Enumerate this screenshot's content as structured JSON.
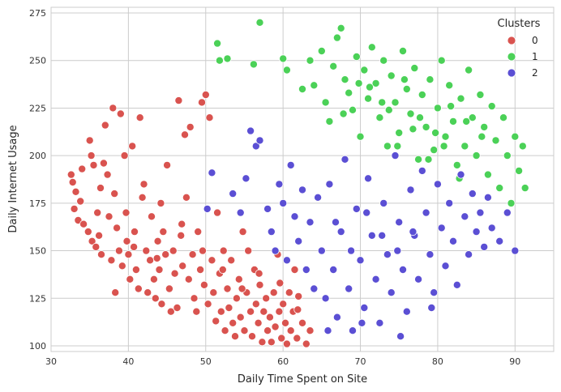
{
  "chart_data": {
    "type": "scatter",
    "title": "",
    "xlabel": "Daily Time Spent on Site",
    "ylabel": "Daily Internet Usage",
    "xlim": [
      30,
      95
    ],
    "ylim": [
      97,
      278
    ],
    "xticks": [
      30,
      40,
      50,
      60,
      70,
      80,
      90
    ],
    "yticks": [
      100,
      125,
      150,
      175,
      200,
      225,
      250,
      275
    ],
    "grid": true,
    "legend": {
      "title": "Clusters",
      "position": "top-right"
    },
    "series": [
      {
        "name": "0",
        "color": "#d9534f",
        "points": [
          [
            32.6,
            190
          ],
          [
            32.8,
            186
          ],
          [
            33.2,
            181
          ],
          [
            33.0,
            172
          ],
          [
            33.5,
            166
          ],
          [
            34.0,
            193
          ],
          [
            34.2,
            164
          ],
          [
            34.8,
            160
          ],
          [
            35.0,
            208
          ],
          [
            35.2,
            200
          ],
          [
            35.5,
            195
          ],
          [
            35.3,
            155
          ],
          [
            35.8,
            152
          ],
          [
            36.0,
            170
          ],
          [
            36.2,
            158
          ],
          [
            36.5,
            148
          ],
          [
            36.8,
            196
          ],
          [
            37.0,
            216
          ],
          [
            37.3,
            190
          ],
          [
            37.5,
            168
          ],
          [
            37.8,
            145
          ],
          [
            38.0,
            225
          ],
          [
            38.2,
            180
          ],
          [
            38.5,
            162
          ],
          [
            38.8,
            150
          ],
          [
            39.0,
            222
          ],
          [
            39.2,
            142
          ],
          [
            39.5,
            200
          ],
          [
            39.8,
            155
          ],
          [
            40.0,
            148
          ],
          [
            40.2,
            135
          ],
          [
            40.5,
            205
          ],
          [
            40.8,
            160
          ],
          [
            41.0,
            140
          ],
          [
            41.3,
            130
          ],
          [
            41.5,
            220
          ],
          [
            41.8,
            178
          ],
          [
            42.0,
            185
          ],
          [
            42.3,
            150
          ],
          [
            42.5,
            128
          ],
          [
            42.8,
            145
          ],
          [
            43.0,
            168
          ],
          [
            43.3,
            135
          ],
          [
            43.5,
            125
          ],
          [
            43.8,
            155
          ],
          [
            44.0,
            140
          ],
          [
            44.3,
            122
          ],
          [
            44.5,
            160
          ],
          [
            44.8,
            148
          ],
          [
            45.0,
            195
          ],
          [
            45.3,
            130
          ],
          [
            45.5,
            118
          ],
          [
            45.8,
            150
          ],
          [
            46.0,
            138
          ],
          [
            46.3,
            120
          ],
          [
            46.5,
            229
          ],
          [
            46.8,
            158
          ],
          [
            47.0,
            142
          ],
          [
            47.3,
            211
          ],
          [
            47.5,
            178
          ],
          [
            47.8,
            135
          ],
          [
            48.0,
            215
          ],
          [
            48.3,
            148
          ],
          [
            48.5,
            125
          ],
          [
            48.8,
            118
          ],
          [
            49.0,
            160
          ],
          [
            49.3,
            140
          ],
          [
            49.5,
            228
          ],
          [
            49.8,
            132
          ],
          [
            50.0,
            232
          ],
          [
            50.3,
            122
          ],
          [
            50.5,
            220
          ],
          [
            50.8,
            145
          ],
          [
            51.0,
            128
          ],
          [
            51.3,
            113
          ],
          [
            51.5,
            170
          ],
          [
            51.8,
            138
          ],
          [
            52.0,
            118
          ],
          [
            52.3,
            150
          ],
          [
            52.5,
            108
          ],
          [
            52.8,
            130
          ],
          [
            53.0,
            120
          ],
          [
            53.3,
            145
          ],
          [
            53.5,
            112
          ],
          [
            53.8,
            105
          ],
          [
            54.0,
            125
          ],
          [
            54.3,
            135
          ],
          [
            54.5,
            115
          ],
          [
            54.8,
            160
          ],
          [
            55.0,
            108
          ],
          [
            55.3,
            128
          ],
          [
            55.5,
            150
          ],
          [
            55.8,
            118
          ],
          [
            56.0,
            105
          ],
          [
            56.3,
            140
          ],
          [
            56.5,
            122
          ],
          [
            56.8,
            112
          ],
          [
            57.0,
            132
          ],
          [
            57.3,
            102
          ],
          [
            57.5,
            118
          ],
          [
            57.8,
            125
          ],
          [
            58.0,
            108
          ],
          [
            58.3,
            115
          ],
          [
            58.5,
            102
          ],
          [
            58.8,
            128
          ],
          [
            59.0,
            110
          ],
          [
            59.3,
            148
          ],
          [
            59.5,
            118
          ],
          [
            59.8,
            104
          ],
          [
            60.0,
            122
          ],
          [
            60.3,
            112
          ],
          [
            60.5,
            101
          ],
          [
            60.8,
            128
          ],
          [
            61.0,
            108
          ],
          [
            61.3,
            118
          ],
          [
            61.5,
            140
          ],
          [
            61.8,
            104
          ],
          [
            62.0,
            126
          ],
          [
            62.5,
            112
          ],
          [
            63.0,
            101
          ],
          [
            63.5,
            108
          ],
          [
            33.8,
            176
          ],
          [
            36.4,
            183
          ],
          [
            39.7,
            170
          ],
          [
            44.2,
            175
          ],
          [
            38.3,
            128
          ],
          [
            40.7,
            152
          ],
          [
            43.7,
            146
          ],
          [
            46.9,
            164
          ],
          [
            49.6,
            150
          ],
          [
            52.2,
            140
          ],
          [
            54.7,
            130
          ],
          [
            56.9,
            138
          ],
          [
            59.6,
            133
          ],
          [
            61.9,
            119
          ]
        ]
      },
      {
        "name": "1",
        "color": "#4bd157",
        "points": [
          [
            51.5,
            259
          ],
          [
            51.8,
            250
          ],
          [
            52.8,
            251
          ],
          [
            56.2,
            248
          ],
          [
            57.0,
            270
          ],
          [
            60.0,
            251
          ],
          [
            60.5,
            245
          ],
          [
            62.5,
            235
          ],
          [
            63.5,
            250
          ],
          [
            64.0,
            237
          ],
          [
            65.0,
            255
          ],
          [
            65.5,
            228
          ],
          [
            66.0,
            218
          ],
          [
            66.5,
            247
          ],
          [
            67.0,
            262
          ],
          [
            67.5,
            267
          ],
          [
            68.0,
            240
          ],
          [
            68.5,
            233
          ],
          [
            69.0,
            224
          ],
          [
            69.5,
            252
          ],
          [
            70.0,
            210
          ],
          [
            70.5,
            245
          ],
          [
            71.0,
            230
          ],
          [
            71.5,
            257
          ],
          [
            72.0,
            238
          ],
          [
            72.5,
            220
          ],
          [
            73.0,
            250
          ],
          [
            73.5,
            205
          ],
          [
            74.0,
            242
          ],
          [
            74.5,
            228
          ],
          [
            75.0,
            212
          ],
          [
            75.5,
            255
          ],
          [
            76.0,
            235
          ],
          [
            76.5,
            222
          ],
          [
            77.0,
            246
          ],
          [
            77.5,
            198
          ],
          [
            78.0,
            232
          ],
          [
            78.5,
            215
          ],
          [
            79.0,
            240
          ],
          [
            79.5,
            203
          ],
          [
            80.0,
            225
          ],
          [
            80.5,
            250
          ],
          [
            81.0,
            210
          ],
          [
            81.5,
            237
          ],
          [
            82.0,
            218
          ],
          [
            82.5,
            195
          ],
          [
            83.0,
            230
          ],
          [
            83.5,
            205
          ],
          [
            84.0,
            245
          ],
          [
            84.5,
            220
          ],
          [
            85.0,
            200
          ],
          [
            85.5,
            232
          ],
          [
            86.0,
            215
          ],
          [
            86.5,
            190
          ],
          [
            87.0,
            226
          ],
          [
            87.5,
            208
          ],
          [
            88.0,
            183
          ],
          [
            88.5,
            220
          ],
          [
            89.0,
            200
          ],
          [
            89.5,
            175
          ],
          [
            90.0,
            210
          ],
          [
            90.5,
            192
          ],
          [
            91.0,
            205
          ],
          [
            91.3,
            183
          ],
          [
            71.2,
            236
          ],
          [
            73.7,
            224
          ],
          [
            75.7,
            240
          ],
          [
            77.7,
            220
          ],
          [
            79.7,
            212
          ],
          [
            81.7,
            226
          ],
          [
            83.7,
            218
          ],
          [
            85.7,
            210
          ],
          [
            78.8,
            198
          ],
          [
            80.8,
            205
          ],
          [
            82.8,
            188
          ],
          [
            74.8,
            205
          ],
          [
            76.8,
            214
          ],
          [
            72.8,
            228
          ],
          [
            69.8,
            238
          ],
          [
            67.8,
            222
          ]
        ]
      },
      {
        "name": "2",
        "color": "#5b4fd4",
        "points": [
          [
            50.2,
            172
          ],
          [
            50.8,
            191
          ],
          [
            53.5,
            180
          ],
          [
            54.5,
            170
          ],
          [
            55.2,
            188
          ],
          [
            55.8,
            213
          ],
          [
            56.5,
            205
          ],
          [
            57.0,
            208
          ],
          [
            58.0,
            172
          ],
          [
            58.5,
            160
          ],
          [
            59.0,
            150
          ],
          [
            59.5,
            185
          ],
          [
            60.0,
            175
          ],
          [
            60.5,
            145
          ],
          [
            61.0,
            195
          ],
          [
            61.5,
            168
          ],
          [
            62.0,
            155
          ],
          [
            62.5,
            182
          ],
          [
            63.0,
            140
          ],
          [
            63.5,
            165
          ],
          [
            64.0,
            130
          ],
          [
            64.5,
            178
          ],
          [
            65.0,
            150
          ],
          [
            65.5,
            125
          ],
          [
            66.0,
            185
          ],
          [
            66.5,
            140
          ],
          [
            67.0,
            115
          ],
          [
            67.5,
            160
          ],
          [
            68.0,
            198
          ],
          [
            68.5,
            130
          ],
          [
            69.0,
            108
          ],
          [
            69.5,
            172
          ],
          [
            70.0,
            145
          ],
          [
            70.5,
            120
          ],
          [
            71.0,
            188
          ],
          [
            71.5,
            158
          ],
          [
            72.0,
            135
          ],
          [
            72.5,
            112
          ],
          [
            73.0,
            175
          ],
          [
            73.5,
            148
          ],
          [
            74.0,
            128
          ],
          [
            74.5,
            200
          ],
          [
            75.0,
            165
          ],
          [
            75.5,
            140
          ],
          [
            76.0,
            118
          ],
          [
            76.5,
            182
          ],
          [
            77.0,
            158
          ],
          [
            77.5,
            135
          ],
          [
            78.0,
            192
          ],
          [
            78.5,
            170
          ],
          [
            79.0,
            148
          ],
          [
            79.5,
            128
          ],
          [
            80.0,
            185
          ],
          [
            80.5,
            162
          ],
          [
            81.0,
            142
          ],
          [
            81.5,
            175
          ],
          [
            82.0,
            155
          ],
          [
            82.5,
            132
          ],
          [
            83.0,
            190
          ],
          [
            83.5,
            168
          ],
          [
            84.0,
            148
          ],
          [
            84.5,
            180
          ],
          [
            85.0,
            160
          ],
          [
            85.5,
            170
          ],
          [
            86.0,
            152
          ],
          [
            86.5,
            178
          ],
          [
            87.0,
            162
          ],
          [
            88.0,
            155
          ],
          [
            89.0,
            170
          ],
          [
            90.0,
            150
          ],
          [
            66.8,
            165
          ],
          [
            68.8,
            150
          ],
          [
            70.8,
            170
          ],
          [
            72.8,
            158
          ],
          [
            74.8,
            150
          ],
          [
            76.8,
            160
          ],
          [
            65.8,
            108
          ],
          [
            70.2,
            112
          ],
          [
            75.2,
            105
          ],
          [
            79.2,
            120
          ]
        ]
      }
    ]
  }
}
